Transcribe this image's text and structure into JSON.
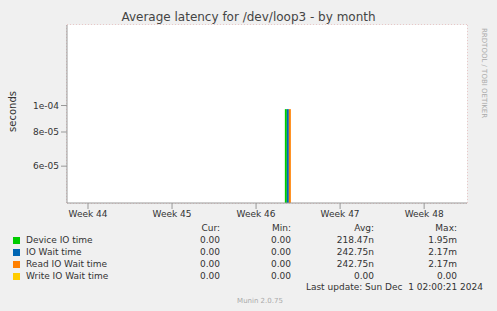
{
  "chart_data": {
    "type": "bar",
    "title": "Average latency for /dev/loop3 - by month",
    "y_label": "seconds",
    "log": "y",
    "grid": true,
    "x": [
      46.39
    ],
    "xlim": [
      43.75,
      48.51
    ],
    "xticks": [
      {
        "value": 44,
        "label": "Week 44"
      },
      {
        "value": 45,
        "label": "Week 45"
      },
      {
        "value": 46,
        "label": "Week 46"
      },
      {
        "value": 47,
        "label": "Week 47"
      },
      {
        "value": 48,
        "label": "Week 48"
      }
    ],
    "ylim": [
      4.4e-05,
      0.000197
    ],
    "yticks": [
      {
        "value": 6e-05,
        "label": "6e-05"
      },
      {
        "value": 8e-05,
        "label": "8e-05"
      },
      {
        "value": 0.0001,
        "label": "1e-04"
      }
    ],
    "legend_columns": [
      "Cur:",
      "Min:",
      "Avg:",
      "Max:"
    ],
    "series": [
      {
        "name": "Device IO time",
        "color": "#00cc00",
        "values": [
          9.7e-05
        ],
        "cur": "0.00",
        "min": "0.00",
        "avg": "218.47n",
        "max": "1.95m"
      },
      {
        "name": "IO Wait time",
        "color": "#0066b3",
        "values": [
          9.7e-05
        ],
        "cur": "0.00",
        "min": "0.00",
        "avg": "242.75n",
        "max": "2.17m"
      },
      {
        "name": "Read IO Wait time",
        "color": "#ff8000",
        "values": [
          9.7e-05
        ],
        "cur": "0.00",
        "min": "0.00",
        "avg": "242.75n",
        "max": "2.17m"
      },
      {
        "name": "Write IO Wait time",
        "color": "#ffcc00",
        "values": [
          null
        ],
        "cur": "0.00",
        "min": "0.00",
        "avg": "0.00",
        "max": "0.00"
      }
    ],
    "last_update": "Last update: Sun Dec  1 02:00:21 2024",
    "footer": "Munin 2.0.75",
    "watermark": "RRDTOOL / TOBI OETIKER"
  }
}
